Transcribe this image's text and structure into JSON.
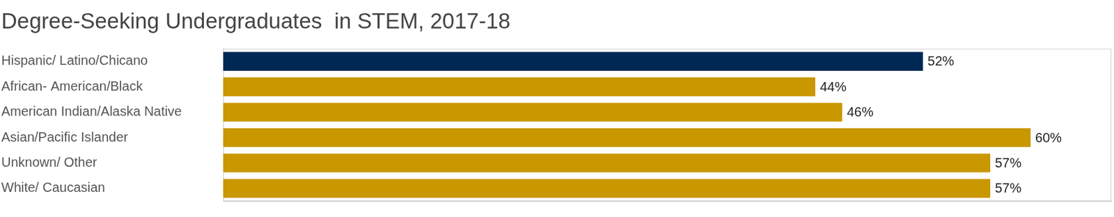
{
  "chart_data": {
    "type": "bar",
    "orientation": "horizontal",
    "title": "Degree-Seeking Undergraduates  in STEM, 2017-18",
    "categories": [
      "Hispanic/ Latino/Chicano",
      "African- American/Black",
      "American Indian/Alaska Native",
      "Asian/Pacific Islander",
      "Unknown/ Other",
      "White/ Caucasian"
    ],
    "values": [
      52,
      44,
      46,
      60,
      57,
      57
    ],
    "value_labels": [
      "52%",
      "44%",
      "46%",
      "60%",
      "57%",
      "57%"
    ],
    "colors": [
      "#002855",
      "#c99700",
      "#c99700",
      "#c99700",
      "#c99700",
      "#c99700"
    ],
    "xlim": [
      0,
      66
    ],
    "grid": false,
    "data_labels": true,
    "tick_labels": "y"
  }
}
